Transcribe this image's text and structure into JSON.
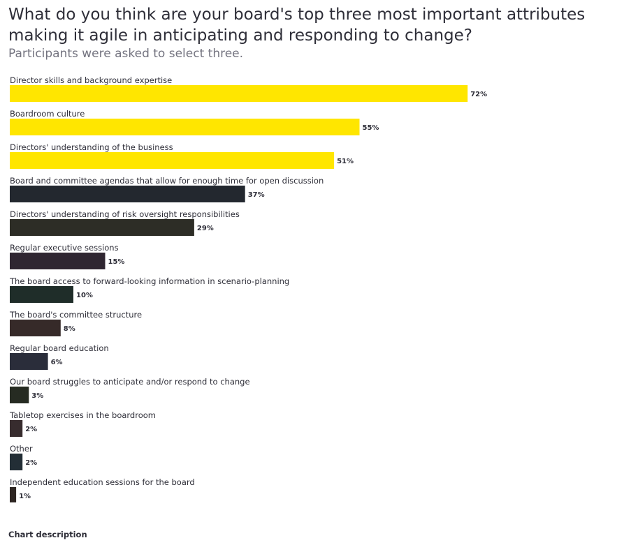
{
  "chart_data": {
    "type": "bar",
    "orientation": "horizontal",
    "title": "What do you think are your board's top three most important attributes making it agile in anticipating and responding to change?",
    "subtitle": "Participants were asked to select three.",
    "categories": [
      "Director skills and background expertise",
      "Boardroom culture",
      "Directors' understanding of the business",
      "Board and committee agendas that allow for enough time for open discussion",
      "Directors' understanding of risk oversight responsibilities",
      "Regular executive sessions",
      "The board access to forward-looking information in scenario-planning",
      "The board's committee structure",
      "Regular board education",
      "Our board struggles to anticipate and/or respond to change",
      "Tabletop exercises in the boardroom",
      "Other",
      "Independent education sessions for the board"
    ],
    "values": [
      72,
      55,
      51,
      37,
      29,
      15,
      10,
      8,
      6,
      3,
      2,
      2,
      1
    ],
    "value_labels": [
      "72%",
      "55%",
      "51%",
      "37%",
      "29%",
      "15%",
      "10%",
      "8%",
      "6%",
      "3%",
      "2%",
      "2%",
      "1%"
    ],
    "colors": [
      "#ffe600",
      "#ffe600",
      "#ffe600",
      "#23282f",
      "#2d2d26",
      "#2f2631",
      "#1f2d29",
      "#362a29",
      "#2a2d3a",
      "#262b22",
      "#372c2e",
      "#232e36",
      "#2e2622"
    ],
    "xlim": [
      0,
      100
    ],
    "grid": false,
    "legend": "none"
  },
  "footer": {
    "chart_description_label": "Chart description"
  }
}
